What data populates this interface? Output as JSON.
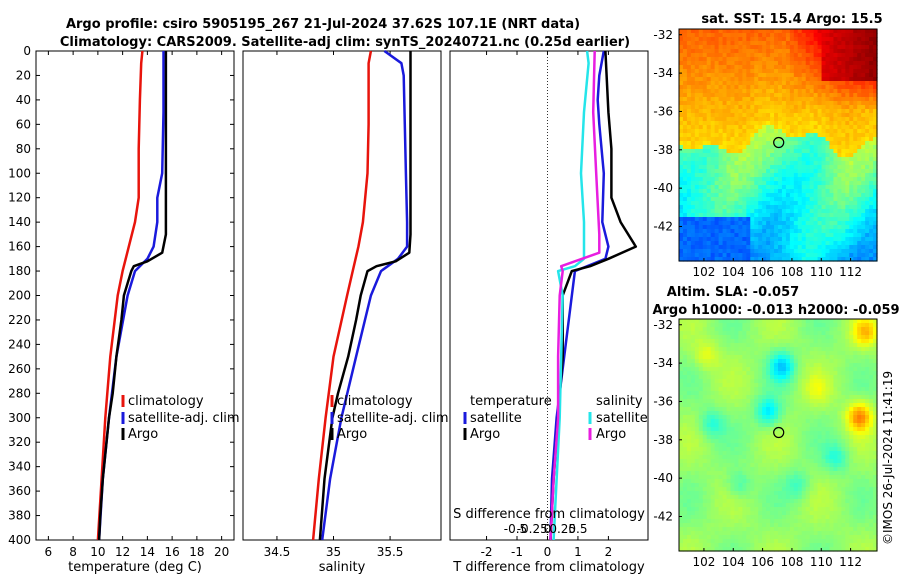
{
  "title_line1": "Argo profile: csiro 5905195_267 21-Jul-2024 37.62S 107.1E (NRT data)",
  "title_line2": "Climatology: CARS2009. Satellite-adj clim: synTS_20240721.nc (0.25d earlier)",
  "copyright": "©IMOS 26-Jul-2024 11:41:19",
  "colors": {
    "climatology": "#e8140c",
    "satellite": "#1a1adc",
    "argo": "#000000",
    "sat_salinity": "#25e5ea",
    "argo_salinity_diff": "#e81ee0"
  },
  "chart_data": [
    {
      "type": "line",
      "name": "temperature-profile",
      "xlabel": "temperature (deg C)",
      "ylabel": "",
      "xlim": [
        5,
        21
      ],
      "ylim": [
        0,
        400
      ],
      "y_reversed": true,
      "xticks": [
        6,
        8,
        10,
        12,
        14,
        16,
        18,
        20
      ],
      "yticks": [
        0,
        20,
        40,
        60,
        80,
        100,
        120,
        140,
        160,
        180,
        200,
        220,
        240,
        260,
        280,
        300,
        320,
        340,
        360,
        380,
        400
      ],
      "legend": [
        "climatology",
        "satellite-adj. clim",
        "Argo"
      ],
      "series": [
        {
          "name": "climatology",
          "color_key": "climatology",
          "depth": [
            0,
            10,
            40,
            80,
            120,
            140,
            160,
            180,
            200,
            250,
            300,
            350,
            400
          ],
          "values": [
            13.6,
            13.5,
            13.4,
            13.3,
            13.3,
            13.0,
            12.5,
            12.0,
            11.6,
            11.0,
            10.6,
            10.3,
            10.0
          ]
        },
        {
          "name": "satellite-adj. clim",
          "color_key": "satellite",
          "depth": [
            0,
            50,
            100,
            120,
            140,
            160,
            170,
            180,
            200,
            250,
            300,
            350,
            400
          ],
          "values": [
            15.3,
            15.3,
            15.2,
            14.8,
            14.8,
            14.5,
            14.0,
            13.0,
            12.4,
            11.5,
            10.9,
            10.4,
            10.1
          ]
        },
        {
          "name": "Argo",
          "color_key": "argo",
          "depth": [
            0,
            50,
            100,
            150,
            165,
            172,
            176,
            180,
            190,
            200,
            220,
            250,
            280,
            300,
            320,
            350,
            380,
            400
          ],
          "values": [
            15.5,
            15.5,
            15.5,
            15.5,
            15.2,
            14.0,
            12.9,
            12.7,
            12.4,
            12.1,
            11.9,
            11.5,
            11.2,
            10.9,
            10.7,
            10.4,
            10.2,
            10.1
          ]
        }
      ]
    },
    {
      "type": "line",
      "name": "salinity-profile",
      "xlabel": "salinity",
      "ylabel": "",
      "xlim": [
        34.2,
        35.95
      ],
      "ylim": [
        0,
        400
      ],
      "y_reversed": true,
      "xticks": [
        34.5,
        35,
        35.5
      ],
      "legend": [
        "climatology",
        "satellite-adj. clim",
        "Argo"
      ],
      "series": [
        {
          "name": "climatology",
          "color_key": "climatology",
          "depth": [
            0,
            10,
            60,
            100,
            140,
            160,
            180,
            200,
            250,
            300,
            350,
            400
          ],
          "values": [
            35.33,
            35.31,
            35.31,
            35.3,
            35.26,
            35.22,
            35.17,
            35.12,
            35.0,
            34.93,
            34.87,
            34.82
          ]
        },
        {
          "name": "satellite-adj. clim",
          "color_key": "satellite",
          "depth": [
            0,
            10,
            20,
            60,
            100,
            140,
            160,
            170,
            180,
            200,
            250,
            300,
            350,
            400
          ],
          "values": [
            35.45,
            35.6,
            35.62,
            35.63,
            35.64,
            35.65,
            35.65,
            35.57,
            35.42,
            35.33,
            35.2,
            35.07,
            34.97,
            34.9
          ]
        },
        {
          "name": "Argo",
          "color_key": "argo",
          "depth": [
            0,
            50,
            100,
            150,
            165,
            172,
            176,
            180,
            200,
            220,
            250,
            280,
            300,
            350,
            400
          ],
          "values": [
            35.68,
            35.68,
            35.68,
            35.68,
            35.67,
            35.55,
            35.38,
            35.3,
            35.24,
            35.2,
            35.13,
            35.04,
            34.99,
            34.92,
            34.88
          ]
        }
      ]
    },
    {
      "type": "line",
      "name": "difference-profile",
      "xlabel": "T difference from climatology",
      "xlabel_top": "S difference from climatology",
      "xlim": [
        -3.2,
        3.3
      ],
      "ylim": [
        0,
        400
      ],
      "y_reversed": true,
      "xticks": [
        -2,
        -1,
        0,
        1,
        2
      ],
      "xticks_s": [
        "-0.5",
        "-0.25",
        "0",
        "0.25",
        "0.5"
      ],
      "legend_left": [
        "temperature",
        "satellite",
        "Argo"
      ],
      "legend_right": [
        "salinity",
        "satellite",
        "Argo"
      ],
      "series": [
        {
          "name": "T satellite",
          "color_key": "satellite",
          "depth": [
            0,
            20,
            40,
            60,
            100,
            140,
            160,
            170,
            180,
            250,
            300,
            350,
            400
          ],
          "values": [
            1.85,
            1.7,
            1.65,
            1.7,
            1.85,
            1.8,
            2.0,
            1.9,
            0.9,
            0.55,
            0.3,
            0.15,
            0.1
          ]
        },
        {
          "name": "T Argo",
          "color_key": "argo",
          "depth": [
            0,
            50,
            80,
            100,
            120,
            140,
            160,
            170,
            176,
            180,
            200,
            250,
            300,
            350,
            400
          ],
          "values": [
            1.9,
            2.0,
            2.1,
            2.1,
            2.1,
            2.4,
            2.9,
            2.0,
            1.4,
            0.8,
            0.5,
            0.5,
            0.35,
            0.2,
            0.1
          ]
        },
        {
          "name": "S satellite",
          "color_key": "sat_salinity",
          "depth": [
            0,
            10,
            50,
            100,
            140,
            160,
            170,
            176,
            180,
            200,
            300,
            400
          ],
          "values": [
            1.3,
            1.35,
            1.2,
            1.1,
            1.2,
            1.2,
            1.2,
            0.9,
            0.35,
            0.5,
            0.4,
            0.2
          ]
        },
        {
          "name": "S Argo",
          "color_key": "argo_salinity_diff",
          "depth": [
            0,
            50,
            100,
            150,
            165,
            172,
            176,
            180,
            200,
            250,
            300,
            350,
            400
          ],
          "values": [
            1.55,
            1.5,
            1.6,
            1.7,
            1.7,
            0.9,
            0.45,
            0.5,
            0.4,
            0.35,
            0.35,
            0.2,
            0.1
          ]
        }
      ]
    },
    {
      "type": "heatmap",
      "name": "sst-map",
      "title": "sat. SST: 15.4 Argo: 15.5",
      "xticks": [
        102,
        104,
        106,
        108,
        110,
        112
      ],
      "yticks": [
        -32,
        -34,
        -36,
        -38,
        -40,
        -42
      ],
      "xlim": [
        100.3,
        113.8
      ],
      "ylim": [
        -43.8,
        -31.7
      ],
      "float_position": {
        "lon": 107.1,
        "lat": -37.62
      }
    },
    {
      "type": "heatmap",
      "name": "sla-map",
      "title": "Altim. SLA: -0.057",
      "title2": "Argo h1000: -0.013 h2000: -0.059",
      "xticks": [
        102,
        104,
        106,
        108,
        110,
        112
      ],
      "yticks": [
        -32,
        -34,
        -36,
        -38,
        -40,
        -42
      ],
      "xlim": [
        100.3,
        113.8
      ],
      "ylim": [
        -43.8,
        -31.7
      ],
      "float_position": {
        "lon": 107.1,
        "lat": -37.62
      }
    }
  ]
}
